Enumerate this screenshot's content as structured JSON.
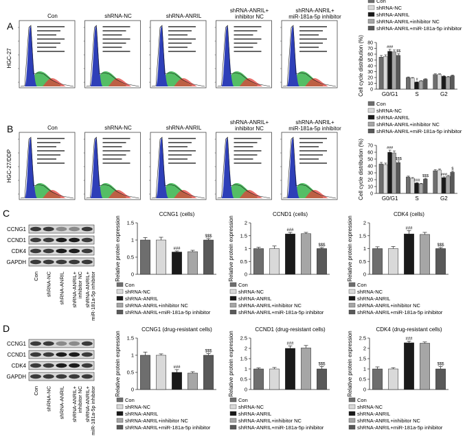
{
  "panels": {
    "A": {
      "letter": "A",
      "row_label": "HGC-27",
      "flow_titles": [
        "Con",
        "shRNA-NC",
        "shRNA-ANRIL",
        "shRNA-ANRIL+\ninhibitor NC",
        "shRNA-ANRIL+\nmiR-181a-5p inhibitor"
      ]
    },
    "B": {
      "letter": "B",
      "row_label": "HGC-27/DDP",
      "flow_titles": [
        "Con",
        "shRNA-NC",
        "shRNA-ANRIL",
        "shRNA-ANRIL+\ninhibitor NC",
        "shRNA-ANRIL+\nmiR-181a-5p inhibitor"
      ]
    },
    "C": {
      "letter": "C"
    },
    "D": {
      "letter": "D"
    }
  },
  "blots": {
    "proteins": [
      "CCNG1",
      "CCND1",
      "CDK4",
      "GAPDH"
    ],
    "lanes": [
      "Con",
      "shRNA-NC",
      "shRNA-ANRIL",
      "shRNA-ANRIL+\ninhibitor NC",
      "shRNA-ANRIL+\nmiR-181a-5p inhibitor"
    ]
  },
  "legend_labels": [
    "Con",
    "shRNA-NC",
    "shRNA-ANRIL",
    "shRNA-ANRIL+inhibitor NC",
    "shRNA-ANRIL+miR-181a-5p inhibitor"
  ],
  "colors": {
    "Con": "#6e6e6e",
    "shRNA-NC": "#d9d9d9",
    "shRNA-ANRIL": "#1a1a1a",
    "shRNA-ANRIL+inhibitor NC": "#a6a6a6",
    "shRNA-ANRIL+miR-181a-5p inhibitor": "#595959"
  },
  "chart_data": [
    {
      "id": "cc_A",
      "type": "bar",
      "title": "",
      "ylabel": "Cell cycle distribution (%)",
      "ylim": [
        0,
        80
      ],
      "yticks": [
        0,
        10,
        20,
        30,
        40,
        50,
        60,
        70,
        80
      ],
      "categories": [
        "G0/G1",
        "S",
        "G2"
      ],
      "series": [
        {
          "name": "Con",
          "values": [
            55,
            20,
            25
          ]
        },
        {
          "name": "shRNA-NC",
          "values": [
            56,
            19,
            25
          ]
        },
        {
          "name": "shRNA-ANRIL",
          "values": [
            65,
            12,
            22
          ]
        },
        {
          "name": "shRNA-ANRIL+inhibitor NC",
          "values": [
            64,
            14,
            21
          ]
        },
        {
          "name": "shRNA-ANRIL+miR-181a-5p inhibitor",
          "values": [
            58,
            17,
            23
          ]
        }
      ],
      "annotations": [
        {
          "group": 0,
          "series": 2,
          "text": "###"
        },
        {
          "group": 0,
          "series": 4,
          "text": "$$"
        },
        {
          "group": 1,
          "series": 2,
          "text": "#"
        }
      ]
    },
    {
      "id": "cc_B",
      "type": "bar",
      "title": "",
      "ylabel": "Cell cycle distribution (%)",
      "ylim": [
        0,
        70
      ],
      "yticks": [
        0,
        10,
        20,
        30,
        40,
        50,
        60,
        70
      ],
      "categories": [
        "G0/G1",
        "S",
        "G2"
      ],
      "series": [
        {
          "name": "Con",
          "values": [
            43,
            24,
            33
          ]
        },
        {
          "name": "shRNA-NC",
          "values": [
            42,
            22,
            34
          ]
        },
        {
          "name": "shRNA-ANRIL",
          "values": [
            60,
            15,
            23
          ]
        },
        {
          "name": "shRNA-ANRIL+inhibitor NC",
          "values": [
            59,
            14,
            25
          ]
        },
        {
          "name": "shRNA-ANRIL+miR-181a-5p inhibitor",
          "values": [
            45,
            21,
            31
          ]
        }
      ],
      "annotations": [
        {
          "group": 0,
          "series": 2,
          "text": "###"
        },
        {
          "group": 0,
          "series": 4,
          "text": "$$$"
        },
        {
          "group": 1,
          "series": 2,
          "text": "###"
        },
        {
          "group": 1,
          "series": 4,
          "text": "$$$"
        },
        {
          "group": 2,
          "series": 2,
          "text": "###"
        },
        {
          "group": 2,
          "series": 4,
          "text": "$"
        }
      ]
    },
    {
      "id": "C1",
      "type": "bar",
      "title": "CCNG1 (cells)",
      "ylabel": "Relative protein expression",
      "ylim": [
        0,
        1.5
      ],
      "yticks": [
        0.0,
        0.5,
        1.0,
        1.5
      ],
      "categories": [
        "Con",
        "shRNA-NC",
        "shRNA-ANRIL",
        "shRNA-ANRIL+inhibitor NC",
        "shRNA-ANRIL+miR-181a-5p inhibitor"
      ],
      "values": [
        1.0,
        1.0,
        0.65,
        0.66,
        1.0
      ],
      "errors": [
        0.07,
        0.08,
        0.03,
        0.04,
        0.04
      ],
      "annotations": [
        {
          "index": 2,
          "text": "###"
        },
        {
          "index": 4,
          "text": "$$$"
        }
      ]
    },
    {
      "id": "C2",
      "type": "bar",
      "title": "CCND1 (cells)",
      "ylabel": "Relative protein expression",
      "ylim": [
        0,
        2.0
      ],
      "yticks": [
        0.0,
        0.5,
        1.0,
        1.5,
        2.0
      ],
      "categories": [
        "Con",
        "shRNA-NC",
        "shRNA-ANRIL",
        "shRNA-ANRIL+inhibitor NC",
        "shRNA-ANRIL+miR-181a-5p inhibitor"
      ],
      "values": [
        1.0,
        1.0,
        1.57,
        1.58,
        1.0
      ],
      "errors": [
        0.05,
        0.1,
        0.06,
        0.05,
        0.04
      ],
      "annotations": [
        {
          "index": 2,
          "text": "###"
        },
        {
          "index": 4,
          "text": "$$$"
        }
      ]
    },
    {
      "id": "C3",
      "type": "bar",
      "title": "CDK4 (cells)",
      "ylabel": "Relative protein expression",
      "ylim": [
        0,
        2.0
      ],
      "yticks": [
        0.0,
        0.5,
        1.0,
        1.5,
        2.0
      ],
      "categories": [
        "Con",
        "shRNA-NC",
        "shRNA-ANRIL",
        "shRNA-ANRIL+inhibitor NC",
        "shRNA-ANRIL+miR-181a-5p inhibitor"
      ],
      "values": [
        1.0,
        1.0,
        1.57,
        1.55,
        1.0
      ],
      "errors": [
        0.07,
        0.08,
        0.13,
        0.08,
        0.04
      ],
      "annotations": [
        {
          "index": 2,
          "text": "###"
        },
        {
          "index": 4,
          "text": "$$$"
        }
      ]
    },
    {
      "id": "D1",
      "type": "bar",
      "title": "CCNG1 (drug-resistant cells)",
      "ylabel": "Relative protein expression",
      "ylim": [
        0,
        1.5
      ],
      "yticks": [
        0.0,
        0.5,
        1.0,
        1.5
      ],
      "categories": [
        "Con",
        "shRNA-NC",
        "shRNA-ANRIL",
        "shRNA-ANRIL+inhibitor NC",
        "shRNA-ANRIL+miR-181a-5p inhibitor"
      ],
      "values": [
        1.0,
        1.0,
        0.5,
        0.48,
        1.0
      ],
      "errors": [
        0.09,
        0.04,
        0.08,
        0.04,
        0.05
      ],
      "annotations": [
        {
          "index": 2,
          "text": "###"
        },
        {
          "index": 4,
          "text": "$$$"
        }
      ]
    },
    {
      "id": "D2",
      "type": "bar",
      "title": "CCND1 (drug-resistant cells)",
      "ylabel": "Relative protein expression",
      "ylim": [
        0,
        2.5
      ],
      "yticks": [
        0.0,
        0.5,
        1.0,
        1.5,
        2.0,
        2.5
      ],
      "categories": [
        "Con",
        "shRNA-NC",
        "shRNA-ANRIL",
        "shRNA-ANRIL+inhibitor NC",
        "shRNA-ANRIL+miR-181a-5p inhibitor"
      ],
      "values": [
        1.0,
        1.0,
        2.0,
        2.02,
        1.0
      ],
      "errors": [
        0.05,
        0.07,
        0.12,
        0.12,
        0.12
      ],
      "annotations": [
        {
          "index": 2,
          "text": "###"
        },
        {
          "index": 4,
          "text": "$$$"
        }
      ]
    },
    {
      "id": "D3",
      "type": "bar",
      "title": "CDK4 (drug-resistant cells)",
      "ylabel": "Relative protein expression",
      "ylim": [
        0,
        2.5
      ],
      "yticks": [
        0.0,
        0.5,
        1.0,
        1.5,
        2.0,
        2.5
      ],
      "categories": [
        "Con",
        "shRNA-NC",
        "shRNA-ANRIL",
        "shRNA-ANRIL+inhibitor NC",
        "shRNA-ANRIL+miR-181a-5p inhibitor"
      ],
      "values": [
        1.0,
        1.0,
        2.27,
        2.25,
        1.0
      ],
      "errors": [
        0.1,
        0.06,
        0.08,
        0.06,
        0.12
      ],
      "annotations": [
        {
          "index": 2,
          "text": "###"
        },
        {
          "index": 4,
          "text": "$$$"
        }
      ]
    }
  ]
}
